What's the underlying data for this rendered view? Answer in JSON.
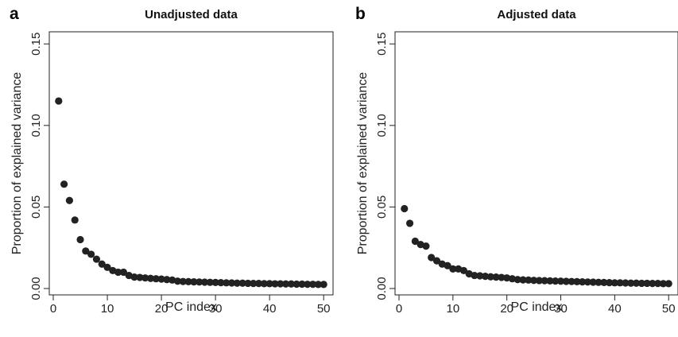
{
  "chart_data": [
    {
      "type": "scatter",
      "panel_letter": "a",
      "title": "Unadjusted data",
      "xlabel": "PC index",
      "ylabel": "Proportion of explained variance",
      "xlim": [
        0,
        51
      ],
      "ylim": [
        0,
        0.155
      ],
      "xticks": [
        0,
        10,
        20,
        30,
        40,
        50
      ],
      "xtick_labels": [
        "0",
        "10",
        "20",
        "30",
        "40",
        "50"
      ],
      "yticks": [
        0,
        0.05,
        0.1,
        0.15
      ],
      "ytick_labels": [
        "0.00",
        "0.05",
        "0.10",
        "0.15"
      ],
      "grid": false,
      "point_color": "#222222",
      "series": [
        {
          "x": [
            1,
            2,
            3,
            4,
            5,
            6,
            7,
            8,
            9,
            10,
            11,
            12,
            13,
            14,
            15,
            16,
            17,
            18,
            19,
            20,
            21,
            22,
            23,
            24,
            25,
            26,
            27,
            28,
            29,
            30,
            31,
            32,
            33,
            34,
            35,
            36,
            37,
            38,
            39,
            40,
            41,
            42,
            43,
            44,
            45,
            46,
            47,
            48,
            49,
            50
          ],
          "values": [
            0.115,
            0.064,
            0.054,
            0.042,
            0.03,
            0.023,
            0.021,
            0.018,
            0.015,
            0.013,
            0.011,
            0.01,
            0.01,
            0.008,
            0.007,
            0.0068,
            0.0065,
            0.0062,
            0.006,
            0.0058,
            0.0055,
            0.0052,
            0.0045,
            0.0043,
            0.0042,
            0.0041,
            0.004,
            0.0039,
            0.0038,
            0.0037,
            0.0036,
            0.0035,
            0.0034,
            0.0033,
            0.0033,
            0.0032,
            0.0031,
            0.0031,
            0.003,
            0.003,
            0.0029,
            0.0029,
            0.0028,
            0.0028,
            0.0027,
            0.0027,
            0.0026,
            0.0026,
            0.0025,
            0.0025
          ]
        }
      ]
    },
    {
      "type": "scatter",
      "panel_letter": "b",
      "title": "Adjusted data",
      "xlabel": "PC index",
      "ylabel": "Proportion of explained variance",
      "xlim": [
        0,
        51
      ],
      "ylim": [
        0,
        0.155
      ],
      "xticks": [
        0,
        10,
        20,
        30,
        40,
        50
      ],
      "xtick_labels": [
        "0",
        "10",
        "20",
        "30",
        "40",
        "50"
      ],
      "yticks": [
        0,
        0.05,
        0.1,
        0.15
      ],
      "ytick_labels": [
        "0.00",
        "0.05",
        "0.10",
        "0.15"
      ],
      "grid": false,
      "point_color": "#222222",
      "series": [
        {
          "x": [
            1,
            2,
            3,
            4,
            5,
            6,
            7,
            8,
            9,
            10,
            11,
            12,
            13,
            14,
            15,
            16,
            17,
            18,
            19,
            20,
            21,
            22,
            23,
            24,
            25,
            26,
            27,
            28,
            29,
            30,
            31,
            32,
            33,
            34,
            35,
            36,
            37,
            38,
            39,
            40,
            41,
            42,
            43,
            44,
            45,
            46,
            47,
            48,
            49,
            50
          ],
          "values": [
            0.049,
            0.04,
            0.029,
            0.027,
            0.026,
            0.019,
            0.017,
            0.015,
            0.014,
            0.012,
            0.012,
            0.011,
            0.009,
            0.008,
            0.0078,
            0.0075,
            0.0072,
            0.007,
            0.0068,
            0.0065,
            0.006,
            0.0055,
            0.0053,
            0.0052,
            0.005,
            0.0049,
            0.0048,
            0.0047,
            0.0046,
            0.0045,
            0.0044,
            0.0043,
            0.0042,
            0.0041,
            0.004,
            0.0039,
            0.0038,
            0.0037,
            0.0036,
            0.0035,
            0.0035,
            0.0034,
            0.0033,
            0.0033,
            0.0032,
            0.0032,
            0.0031,
            0.0031,
            0.003,
            0.003
          ]
        }
      ]
    }
  ]
}
